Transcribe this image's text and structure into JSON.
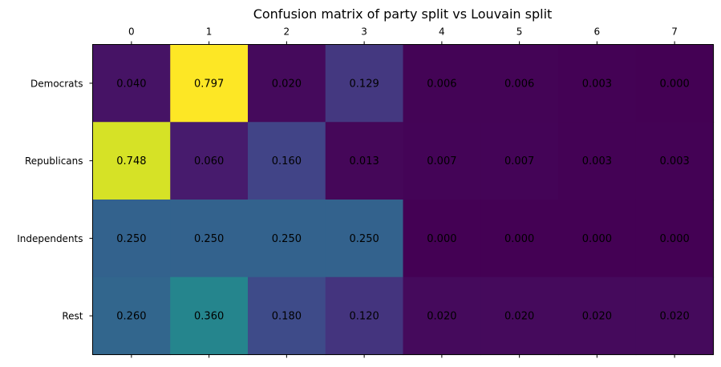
{
  "chart_data": {
    "type": "heatmap",
    "title": "Confusion matrix of party split vs Louvain split",
    "x_categories": [
      "0",
      "1",
      "2",
      "3",
      "4",
      "5",
      "6",
      "7"
    ],
    "y_categories": [
      "Democrats",
      "Republicans",
      "Independents",
      "Rest"
    ],
    "values": [
      [
        0.04,
        0.797,
        0.02,
        0.129,
        0.006,
        0.006,
        0.003,
        0.0
      ],
      [
        0.748,
        0.06,
        0.16,
        0.013,
        0.007,
        0.007,
        0.003,
        0.003
      ],
      [
        0.25,
        0.25,
        0.25,
        0.25,
        0.0,
        0.0,
        0.0,
        0.0
      ],
      [
        0.26,
        0.36,
        0.18,
        0.12,
        0.02,
        0.02,
        0.02,
        0.02
      ]
    ],
    "value_labels": [
      [
        "0.040",
        "0.797",
        "0.020",
        "0.129",
        "0.006",
        "0.006",
        "0.003",
        "0.000"
      ],
      [
        "0.748",
        "0.060",
        "0.160",
        "0.013",
        "0.007",
        "0.007",
        "0.003",
        "0.003"
      ],
      [
        "0.250",
        "0.250",
        "0.250",
        "0.250",
        "0.000",
        "0.000",
        "0.000",
        "0.000"
      ],
      [
        "0.260",
        "0.360",
        "0.180",
        "0.120",
        "0.020",
        "0.020",
        "0.020",
        "0.020"
      ]
    ],
    "colormap": "viridis",
    "x_ticks_position": "top",
    "grid": false,
    "legend": "none"
  }
}
